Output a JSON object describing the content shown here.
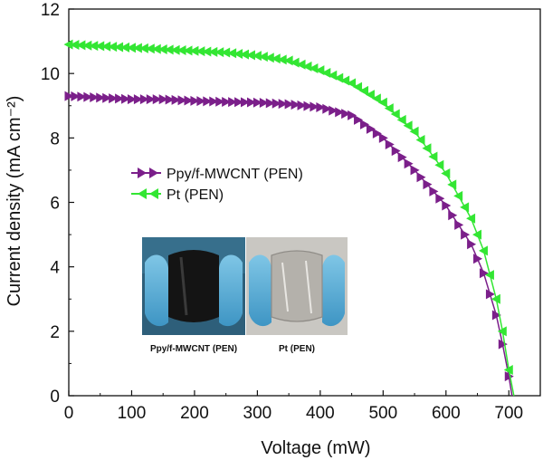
{
  "chart_data": {
    "type": "scatter",
    "title": "",
    "xlabel": "Voltage (mW)",
    "ylabel": "Current density (mA cm⁻²)",
    "xlim": [
      0,
      750
    ],
    "ylim": [
      0,
      12
    ],
    "xticks": [
      0,
      100,
      200,
      300,
      400,
      500,
      600,
      700
    ],
    "yticks": [
      0,
      2,
      4,
      6,
      8,
      10,
      12
    ],
    "grid": false,
    "legend_position": "middle-left",
    "series": [
      {
        "name": "Ppy/f-MWCNT (PEN)",
        "color": "#7b1f8a",
        "marker": "right-triangle",
        "x": [
          0,
          50,
          100,
          150,
          200,
          250,
          300,
          350,
          400,
          450,
          500,
          550,
          600,
          640,
          660,
          680,
          690,
          700,
          705
        ],
        "y": [
          9.3,
          9.25,
          9.2,
          9.2,
          9.15,
          9.12,
          9.1,
          9.05,
          8.95,
          8.7,
          8.0,
          7.0,
          5.9,
          4.7,
          3.8,
          2.5,
          1.6,
          0.6,
          0.0
        ]
      },
      {
        "name": "Pt (PEN)",
        "color": "#33e633",
        "marker": "left-triangle",
        "x": [
          0,
          50,
          100,
          150,
          200,
          250,
          300,
          350,
          400,
          450,
          500,
          550,
          600,
          640,
          660,
          680,
          690,
          700,
          708
        ],
        "y": [
          10.9,
          10.85,
          10.8,
          10.75,
          10.7,
          10.65,
          10.55,
          10.4,
          10.1,
          9.7,
          9.1,
          8.2,
          6.9,
          5.5,
          4.5,
          3.0,
          2.0,
          0.8,
          0.0
        ]
      }
    ],
    "inset": {
      "captions": [
        "Ppy/f-MWCNT (PEN)",
        "Pt (PEN)"
      ]
    }
  }
}
